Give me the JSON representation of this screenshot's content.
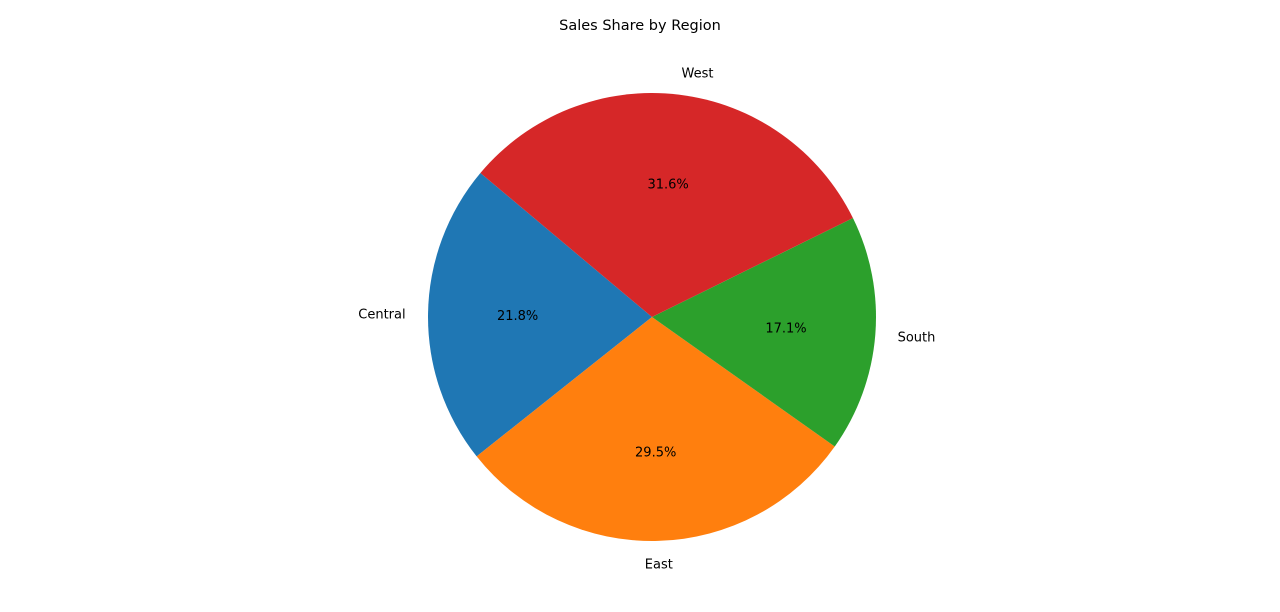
{
  "chart_data": {
    "type": "pie",
    "title": "Sales Share by Region",
    "categories": [
      "Central",
      "East",
      "South",
      "West"
    ],
    "values": [
      21.8,
      29.5,
      17.1,
      31.6
    ],
    "percent_labels": [
      "21.8%",
      "29.5%",
      "17.1%",
      "31.6%"
    ],
    "colors": [
      "#1f77b4",
      "#ff7f0e",
      "#2ca02c",
      "#d62728"
    ],
    "start_angle_deg": 140,
    "direction": "counterclockwise",
    "legend": "none"
  }
}
